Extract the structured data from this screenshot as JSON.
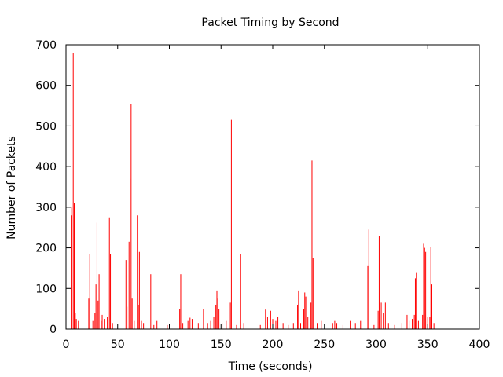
{
  "chart_data": {
    "type": "bar",
    "title": "Packet Timing by Second",
    "xlabel": "Time (seconds)",
    "ylabel": "Number of Packets",
    "xlim": [
      0,
      400
    ],
    "ylim": [
      0,
      700
    ],
    "xticks": [
      0,
      50,
      100,
      150,
      200,
      250,
      300,
      350,
      400
    ],
    "yticks": [
      0,
      100,
      200,
      300,
      400,
      500,
      600,
      700
    ],
    "grid": false,
    "legend": "none",
    "bar_color": "#ff0000",
    "points": [
      [
        5,
        280
      ],
      [
        5.5,
        300
      ],
      [
        7,
        680
      ],
      [
        8,
        310
      ],
      [
        9,
        40
      ],
      [
        10,
        25
      ],
      [
        12,
        20
      ],
      [
        22,
        75
      ],
      [
        23,
        185
      ],
      [
        26,
        20
      ],
      [
        28,
        40
      ],
      [
        29,
        110
      ],
      [
        30,
        262
      ],
      [
        31,
        70
      ],
      [
        32,
        135
      ],
      [
        34,
        20
      ],
      [
        35,
        35
      ],
      [
        37,
        25
      ],
      [
        40,
        30
      ],
      [
        42,
        275
      ],
      [
        43,
        185
      ],
      [
        45,
        15
      ],
      [
        58,
        170
      ],
      [
        59,
        55
      ],
      [
        61,
        215
      ],
      [
        62,
        370
      ],
      [
        63,
        555
      ],
      [
        64,
        75
      ],
      [
        66,
        20
      ],
      [
        69,
        280
      ],
      [
        70,
        60
      ],
      [
        71,
        190
      ],
      [
        73,
        20
      ],
      [
        75,
        15
      ],
      [
        82,
        135
      ],
      [
        85,
        10
      ],
      [
        88,
        20
      ],
      [
        98,
        10
      ],
      [
        110,
        50
      ],
      [
        111,
        135
      ],
      [
        113,
        15
      ],
      [
        118,
        20
      ],
      [
        120,
        28
      ],
      [
        122,
        25
      ],
      [
        128,
        15
      ],
      [
        133,
        50
      ],
      [
        137,
        15
      ],
      [
        140,
        20
      ],
      [
        143,
        30
      ],
      [
        145,
        60
      ],
      [
        146,
        95
      ],
      [
        147,
        75
      ],
      [
        148,
        50
      ],
      [
        151,
        15
      ],
      [
        155,
        20
      ],
      [
        159,
        65
      ],
      [
        160,
        515
      ],
      [
        165,
        10
      ],
      [
        169,
        185
      ],
      [
        172,
        15
      ],
      [
        188,
        10
      ],
      [
        193,
        48
      ],
      [
        195,
        30
      ],
      [
        198,
        45
      ],
      [
        200,
        25
      ],
      [
        203,
        20
      ],
      [
        205,
        30
      ],
      [
        210,
        15
      ],
      [
        215,
        10
      ],
      [
        220,
        15
      ],
      [
        224,
        60
      ],
      [
        225,
        95
      ],
      [
        227,
        15
      ],
      [
        230,
        50
      ],
      [
        231,
        90
      ],
      [
        232,
        80
      ],
      [
        234,
        30
      ],
      [
        237,
        65
      ],
      [
        238,
        415
      ],
      [
        239,
        175
      ],
      [
        243,
        15
      ],
      [
        247,
        20
      ],
      [
        258,
        15
      ],
      [
        260,
        20
      ],
      [
        262,
        15
      ],
      [
        268,
        10
      ],
      [
        275,
        20
      ],
      [
        280,
        15
      ],
      [
        285,
        20
      ],
      [
        292,
        155
      ],
      [
        293,
        245
      ],
      [
        298,
        10
      ],
      [
        302,
        45
      ],
      [
        303,
        230
      ],
      [
        305,
        65
      ],
      [
        307,
        40
      ],
      [
        309,
        65
      ],
      [
        312,
        15
      ],
      [
        318,
        10
      ],
      [
        325,
        15
      ],
      [
        330,
        35
      ],
      [
        332,
        20
      ],
      [
        335,
        25
      ],
      [
        337,
        35
      ],
      [
        338,
        125
      ],
      [
        339,
        140
      ],
      [
        341,
        20
      ],
      [
        345,
        35
      ],
      [
        346,
        210
      ],
      [
        347,
        200
      ],
      [
        348,
        190
      ],
      [
        350,
        30
      ],
      [
        352,
        30
      ],
      [
        353,
        203
      ],
      [
        354,
        110
      ],
      [
        356,
        15
      ]
    ]
  }
}
